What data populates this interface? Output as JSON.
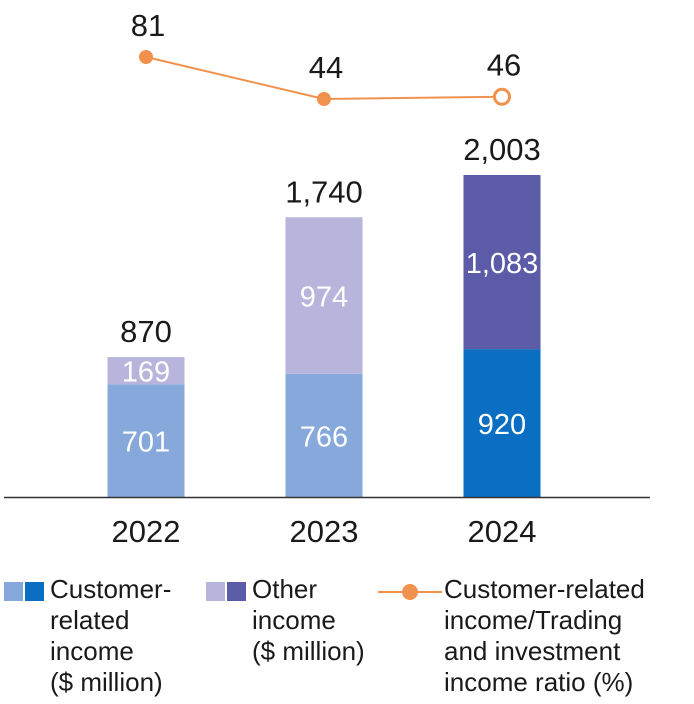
{
  "chart_data": {
    "type": "bar",
    "stacked": true,
    "categories": [
      "2022",
      "2023",
      "2024"
    ],
    "series": [
      {
        "name": "Customer-related income ($ million)",
        "values": [
          701,
          766,
          920
        ]
      },
      {
        "name": "Other income ($ million)",
        "values": [
          169,
          974,
          1083
        ]
      }
    ],
    "totals": [
      "870",
      "1,740",
      "2,003"
    ],
    "segment_labels": {
      "customer": [
        "701",
        "766",
        "920"
      ],
      "other": [
        "169",
        "974",
        "1,083"
      ]
    },
    "ylim": [
      0,
      2100
    ],
    "line": {
      "name": "Customer-related income/Trading and investment income ratio (%)",
      "values": [
        81,
        44,
        46
      ],
      "labels": [
        "81",
        "44",
        "46"
      ],
      "last_point_hollow": true
    },
    "grid": false,
    "legend_position": "bottom",
    "colors": {
      "customer_prior": "#86a8db",
      "customer_current": "#0a6fc2",
      "other_prior": "#b7b5dc",
      "other_current": "#5b5ba8",
      "line": "#f0924d",
      "axis": "#333333"
    }
  },
  "legend": {
    "customer": "Customer-\nrelated\nincome\n($ million)",
    "other": "Other\nincome\n($ million)",
    "ratio": "Customer-related\nincome/Trading\nand investment\nincome ratio (%)"
  }
}
